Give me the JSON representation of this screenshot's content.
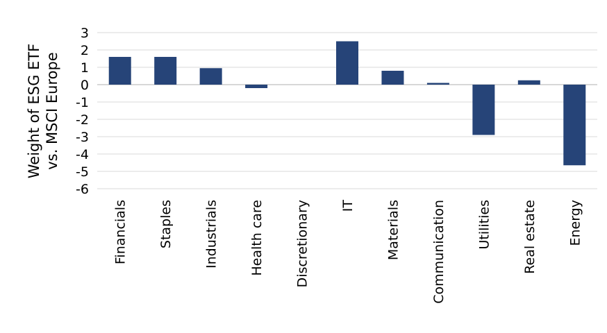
{
  "chart_data": {
    "type": "bar",
    "categories": [
      "Financials",
      "Staples",
      "Industrials",
      "Health care",
      "Discretionary",
      "IT",
      "Materials",
      "Communication",
      "Utilities",
      "Real estate",
      "Energy"
    ],
    "values": [
      1.6,
      1.6,
      0.95,
      -0.2,
      0.0,
      2.5,
      0.8,
      0.1,
      -2.9,
      0.25,
      -4.65
    ],
    "title": "",
    "xlabel": "",
    "ylabel_lines": [
      "Weight of ESG ETF",
      "vs. MSCI Europe"
    ],
    "ylim": [
      -6,
      3
    ],
    "yticks": [
      "3",
      "2",
      "1",
      "0",
      "-1",
      "-2",
      "-3",
      "-4",
      "-5",
      "-6"
    ],
    "grid": true,
    "legend": "none",
    "bar_color": "#264478"
  }
}
